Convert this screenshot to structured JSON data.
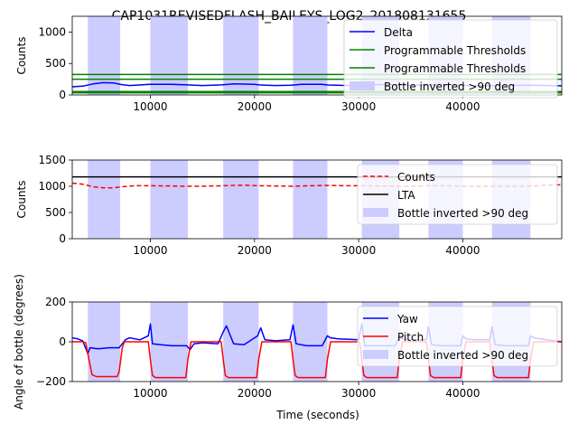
{
  "figure": {
    "title": "CAP1031REVISEDFLASH_BAILEYS_LOG2_201808131655",
    "xlabel": "Time (seconds)"
  },
  "colors": {
    "delta": "#0000ff",
    "threshold": "#008000",
    "inverted_band": "#ccccff",
    "counts": "#ff0000",
    "lta": "#000000",
    "yaw": "#0000ff",
    "pitch": "#ff0000"
  },
  "chart_data": [
    {
      "type": "line",
      "ylabel": "Counts",
      "xlim": [
        2500,
        49500
      ],
      "ylim": [
        0,
        1250
      ],
      "xticks": [
        10000,
        20000,
        30000,
        40000
      ],
      "yticks": [
        0,
        500,
        1000
      ],
      "legend_position": "right",
      "series": [
        {
          "name": "Delta",
          "style": "solid",
          "x": [
            2500,
            3500,
            4500,
            5500,
            6500,
            7200,
            8000,
            10000,
            12000,
            13600,
            15000,
            16800,
            18000,
            20000,
            20400,
            22000,
            23500,
            24500,
            26500,
            27000,
            29000,
            30500,
            32000,
            33900,
            35000,
            36800,
            38000,
            40000,
            42000,
            43000,
            46500,
            48000,
            49500
          ],
          "y": [
            130,
            140,
            175,
            195,
            190,
            165,
            150,
            170,
            170,
            160,
            150,
            160,
            175,
            170,
            160,
            150,
            155,
            170,
            170,
            158,
            150,
            160,
            165,
            158,
            150,
            160,
            165,
            150,
            145,
            150,
            155,
            150,
            145
          ]
        },
        {
          "name": "Programmable Thresholds",
          "style": "solid",
          "x": [
            2500,
            49500
          ],
          "y": [
            325,
            325
          ]
        },
        {
          "name": "Programmable Thresholds",
          "style": "solid",
          "x": [
            2500,
            49500
          ],
          "y": [
            250,
            250
          ]
        },
        {
          "name": "",
          "style": "solid",
          "x": [
            2500,
            49500
          ],
          "y": [
            55,
            55
          ]
        },
        {
          "name": "",
          "style": "solid",
          "x": [
            2500,
            49500
          ],
          "y": [
            35,
            35
          ]
        }
      ],
      "bands": {
        "name": "Bottle inverted >90 deg",
        "ranges": [
          [
            4000,
            7100
          ],
          [
            10000,
            13600
          ],
          [
            17000,
            20400
          ],
          [
            23700,
            27000
          ],
          [
            30300,
            33900
          ],
          [
            36700,
            40000
          ],
          [
            42800,
            46500
          ]
        ]
      }
    },
    {
      "type": "line",
      "ylabel": "Counts",
      "xlim": [
        2500,
        49500
      ],
      "ylim": [
        0,
        1500
      ],
      "xticks": [
        10000,
        20000,
        30000,
        40000
      ],
      "yticks": [
        0,
        500,
        1000,
        1500
      ],
      "legend_position": "right",
      "series": [
        {
          "name": "Counts",
          "style": "dashed",
          "x": [
            2500,
            3500,
            4500,
            5500,
            6500,
            7200,
            8500,
            10000,
            12000,
            13600,
            15000,
            17000,
            19000,
            20400,
            22000,
            23700,
            25500,
            27000,
            29000,
            30300,
            32000,
            33900,
            35000,
            36700,
            38000,
            40000,
            42000,
            42800,
            44500,
            46500,
            48000,
            49500
          ],
          "y": [
            1060,
            1040,
            990,
            970,
            970,
            990,
            1010,
            1010,
            1005,
            1000,
            1000,
            1010,
            1020,
            1010,
            1005,
            1000,
            1010,
            1015,
            1010,
            1010,
            1005,
            1000,
            1000,
            1010,
            1010,
            1000,
            1000,
            1000,
            1000,
            1000,
            1020,
            1030
          ]
        },
        {
          "name": "LTA",
          "style": "solid",
          "x": [
            2500,
            49500
          ],
          "y": [
            1180,
            1180
          ]
        }
      ],
      "bands": {
        "name": "Bottle inverted >90 deg",
        "ranges": [
          [
            4000,
            7100
          ],
          [
            10000,
            13600
          ],
          [
            17000,
            20400
          ],
          [
            23700,
            27000
          ],
          [
            30300,
            33900
          ],
          [
            36700,
            40000
          ],
          [
            42800,
            46500
          ]
        ]
      }
    },
    {
      "type": "line",
      "ylabel": "Angle of bottle (degrees)",
      "xlabel": "Time (seconds)",
      "xlim": [
        2500,
        49500
      ],
      "ylim": [
        -200,
        200
      ],
      "xticks": [
        10000,
        20000,
        30000,
        40000
      ],
      "yticks": [
        -200,
        0,
        200
      ],
      "legend_position": "right",
      "series": [
        {
          "name": "Yaw",
          "style": "solid",
          "x": [
            2500,
            3000,
            3500,
            4000,
            4200,
            5000,
            6000,
            7000,
            7300,
            7600,
            8000,
            9000,
            9800,
            10000,
            10200,
            11000,
            12000,
            13500,
            13800,
            14200,
            15000,
            16500,
            17000,
            17300,
            18000,
            19000,
            20300,
            20600,
            21000,
            22000,
            23400,
            23700,
            24000,
            25000,
            26500,
            27000,
            27300,
            28000,
            30000,
            30300,
            30600,
            31500,
            33500,
            33900,
            34200,
            35000,
            36500,
            36700,
            37000,
            38000,
            39800,
            40000,
            40300,
            41000,
            42600,
            42800,
            43100,
            44000,
            46300,
            46500,
            46800,
            48000,
            49500
          ],
          "y": [
            20,
            15,
            5,
            -60,
            -30,
            -35,
            -30,
            -30,
            -10,
            10,
            20,
            10,
            30,
            90,
            -10,
            -15,
            -20,
            -20,
            -40,
            -10,
            -5,
            -10,
            50,
            80,
            -10,
            -15,
            30,
            70,
            10,
            5,
            10,
            85,
            -10,
            -20,
            -20,
            30,
            20,
            15,
            10,
            90,
            -20,
            -20,
            -20,
            30,
            15,
            10,
            10,
            75,
            -15,
            -20,
            -20,
            30,
            15,
            10,
            10,
            75,
            -15,
            -20,
            -20,
            30,
            20,
            10,
            0
          ]
        },
        {
          "name": "Pitch",
          "style": "solid",
          "x": [
            2500,
            3500,
            3800,
            4100,
            4400,
            4800,
            6800,
            7000,
            7300,
            7500,
            9800,
            10000,
            10200,
            10500,
            13400,
            13600,
            13900,
            16800,
            17000,
            17200,
            17500,
            20200,
            20400,
            20700,
            23500,
            23700,
            23900,
            24200,
            26800,
            27000,
            27300,
            30100,
            30300,
            30500,
            30800,
            33700,
            33900,
            34200,
            36500,
            36700,
            36900,
            37200,
            39800,
            40000,
            40300,
            42600,
            42800,
            43000,
            43300,
            46300,
            46500,
            46800,
            49500
          ],
          "y": [
            0,
            0,
            -5,
            -90,
            -165,
            -175,
            -175,
            -150,
            -30,
            0,
            0,
            -90,
            -170,
            -180,
            -180,
            -90,
            0,
            0,
            -90,
            -170,
            -180,
            -180,
            -90,
            0,
            0,
            -90,
            -170,
            -180,
            -180,
            -90,
            0,
            0,
            -90,
            -170,
            -180,
            -180,
            -90,
            0,
            0,
            -90,
            -170,
            -180,
            -180,
            -90,
            0,
            0,
            -90,
            -170,
            -180,
            -180,
            -90,
            0,
            0
          ]
        }
      ],
      "bands": {
        "name": "Bottle inverted >90 deg",
        "ranges": [
          [
            4000,
            7100
          ],
          [
            10000,
            13600
          ],
          [
            17000,
            20400
          ],
          [
            23700,
            27000
          ],
          [
            30300,
            33900
          ],
          [
            36700,
            40000
          ],
          [
            42800,
            46500
          ]
        ]
      }
    }
  ]
}
